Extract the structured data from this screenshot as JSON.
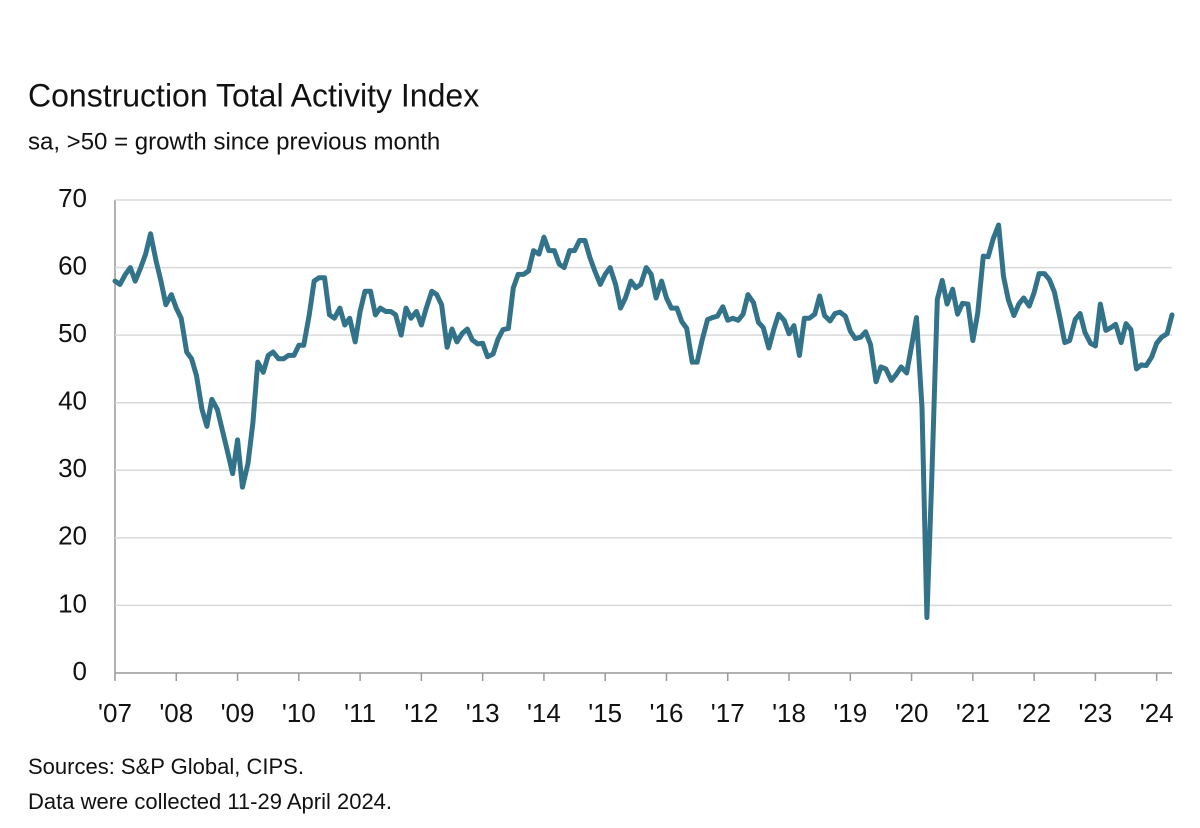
{
  "chart_data": {
    "type": "line",
    "title": "Construction Total Activity Index",
    "subtitle": "sa, >50 = growth since previous month",
    "sources": "Sources: S&P Global, CIPS.",
    "note": "Data were collected 11-29 April 2024.",
    "xlim": [
      2007,
      2024.25
    ],
    "xticks": [
      {
        "value": 2007,
        "label": "'07"
      },
      {
        "value": 2008,
        "label": "'08"
      },
      {
        "value": 2009,
        "label": "'09"
      },
      {
        "value": 2010,
        "label": "'10"
      },
      {
        "value": 2011,
        "label": "'11"
      },
      {
        "value": 2012,
        "label": "'12"
      },
      {
        "value": 2013,
        "label": "'13"
      },
      {
        "value": 2014,
        "label": "'14"
      },
      {
        "value": 2015,
        "label": "'15"
      },
      {
        "value": 2016,
        "label": "'16"
      },
      {
        "value": 2017,
        "label": "'17"
      },
      {
        "value": 2018,
        "label": "'18"
      },
      {
        "value": 2019,
        "label": "'19"
      },
      {
        "value": 2020,
        "label": "'20"
      },
      {
        "value": 2021,
        "label": "'21"
      },
      {
        "value": 2022,
        "label": "'22"
      },
      {
        "value": 2023,
        "label": "'23"
      },
      {
        "value": 2024,
        "label": "'24"
      }
    ],
    "ylim": [
      0,
      70
    ],
    "yticks": [
      0,
      10,
      20,
      30,
      40,
      50,
      60,
      70
    ],
    "grid": true,
    "x": [
      2007,
      2007.08,
      2007.17,
      2007.25,
      2007.33,
      2007.42,
      2007.5,
      2007.58,
      2007.67,
      2007.75,
      2007.83,
      2007.92,
      2008,
      2008.08,
      2008.17,
      2008.25,
      2008.33,
      2008.42,
      2008.5,
      2008.58,
      2008.67,
      2008.75,
      2008.83,
      2008.92,
      2009,
      2009.08,
      2009.17,
      2009.25,
      2009.33,
      2009.42,
      2009.5,
      2009.58,
      2009.67,
      2009.75,
      2009.83,
      2009.92,
      2010,
      2010.08,
      2010.17,
      2010.25,
      2010.33,
      2010.42,
      2010.5,
      2010.58,
      2010.67,
      2010.75,
      2010.83,
      2010.92,
      2011,
      2011.08,
      2011.17,
      2011.25,
      2011.33,
      2011.42,
      2011.5,
      2011.58,
      2011.67,
      2011.75,
      2011.83,
      2011.92,
      2012,
      2012.08,
      2012.17,
      2012.25,
      2012.33,
      2012.42,
      2012.5,
      2012.58,
      2012.67,
      2012.75,
      2012.83,
      2012.92,
      2013,
      2013.08,
      2013.17,
      2013.25,
      2013.33,
      2013.42,
      2013.5,
      2013.58,
      2013.67,
      2013.75,
      2013.83,
      2013.92,
      2014,
      2014.08,
      2014.17,
      2014.25,
      2014.33,
      2014.42,
      2014.5,
      2014.58,
      2014.67,
      2014.75,
      2014.83,
      2014.92,
      2015,
      2015.08,
      2015.17,
      2015.25,
      2015.33,
      2015.42,
      2015.5,
      2015.58,
      2015.67,
      2015.75,
      2015.83,
      2015.92,
      2016,
      2016.08,
      2016.17,
      2016.25,
      2016.33,
      2016.42,
      2016.5,
      2016.58,
      2016.67,
      2016.75,
      2016.83,
      2016.92,
      2017,
      2017.08,
      2017.17,
      2017.25,
      2017.33,
      2017.42,
      2017.5,
      2017.58,
      2017.67,
      2017.75,
      2017.83,
      2017.92,
      2018,
      2018.08,
      2018.17,
      2018.25,
      2018.33,
      2018.42,
      2018.5,
      2018.58,
      2018.67,
      2018.75,
      2018.83,
      2018.92,
      2019,
      2019.08,
      2019.17,
      2019.25,
      2019.33,
      2019.42,
      2019.5,
      2019.58,
      2019.67,
      2019.75,
      2019.83,
      2019.92,
      2020,
      2020.08,
      2020.17,
      2020.25,
      2020.33,
      2020.42,
      2020.5,
      2020.58,
      2020.67,
      2020.75,
      2020.83,
      2020.92,
      2021,
      2021.08,
      2021.17,
      2021.25,
      2021.33,
      2021.42,
      2021.5,
      2021.58,
      2021.67,
      2021.75,
      2021.83,
      2021.92,
      2022,
      2022.08,
      2022.17,
      2022.25,
      2022.33,
      2022.42,
      2022.5,
      2022.58,
      2022.67,
      2022.75,
      2022.83,
      2022.92,
      2023,
      2023.08,
      2023.17,
      2023.25,
      2023.33,
      2023.42,
      2023.5,
      2023.58,
      2023.67,
      2023.75,
      2023.83,
      2023.92,
      2024,
      2024.08,
      2024.17,
      2024.25
    ],
    "series": [
      {
        "color": "#33738a",
        "values": [
          58,
          57.5,
          59,
          60,
          58,
          60,
          62,
          65,
          61,
          58,
          54.5,
          56,
          54,
          52.5,
          47.5,
          46.5,
          44,
          39,
          36.5,
          40.5,
          39,
          36,
          33,
          29.5,
          34.5,
          27.5,
          31,
          37,
          46,
          44.5,
          47,
          47.5,
          46.5,
          46.5,
          47,
          47,
          48.5,
          48.5,
          53,
          58,
          58.5,
          58.5,
          53,
          52.5,
          54,
          51.5,
          52.5,
          49,
          53.5,
          56.5,
          56.5,
          53,
          54,
          53.5,
          53.5,
          53,
          50,
          54,
          52.5,
          53.5,
          51.5,
          54,
          56.5,
          56,
          54.5,
          48.2,
          50.9,
          49,
          50.3,
          50.9,
          49.3,
          48.7,
          48.8,
          46.8,
          47.2,
          49.4,
          50.8,
          51,
          57,
          59,
          59,
          59.5,
          62.5,
          62,
          64.5,
          62.5,
          62.5,
          60.5,
          60,
          62.5,
          62.5,
          64,
          64,
          61.5,
          59.5,
          57.5,
          59,
          60,
          57.5,
          54,
          55.5,
          58,
          57,
          57.5,
          60,
          59,
          55.5,
          58,
          55.5,
          54,
          54,
          52,
          51,
          46,
          46,
          49.2,
          52.3,
          52.6,
          52.8,
          54.2,
          52.2,
          52.5,
          52.2,
          53.1,
          56,
          54.8,
          51.9,
          51.1,
          48.1,
          50.8,
          53.1,
          52.2,
          50.2,
          51.4,
          47,
          52.5,
          52.5,
          53.1,
          55.8,
          52.9,
          52.1,
          53.2,
          53.4,
          52.8,
          50.6,
          49.5,
          49.7,
          50.5,
          48.6,
          43.1,
          45.3,
          45,
          43.3,
          44.2,
          45.3,
          44.4,
          48.4,
          52.6,
          39.3,
          8.2,
          28.9,
          55.3,
          58.1,
          54.6,
          56.8,
          53.1,
          54.7,
          54.6,
          49.2,
          53.3,
          61.7,
          61.6,
          64.2,
          66.3,
          58.7,
          55.2,
          52.9,
          54.6,
          55.5,
          54.3,
          56.3,
          59.1,
          59.1,
          58.2,
          56.4,
          52.6,
          48.9,
          49.2,
          52.3,
          53.2,
          50.4,
          48.8,
          48.4,
          54.6,
          50.7,
          51.1,
          51.6,
          48.9,
          51.7,
          50.8,
          45,
          45.6,
          45.5,
          46.8,
          48.8,
          49.7,
          50.2,
          53
        ]
      }
    ]
  }
}
